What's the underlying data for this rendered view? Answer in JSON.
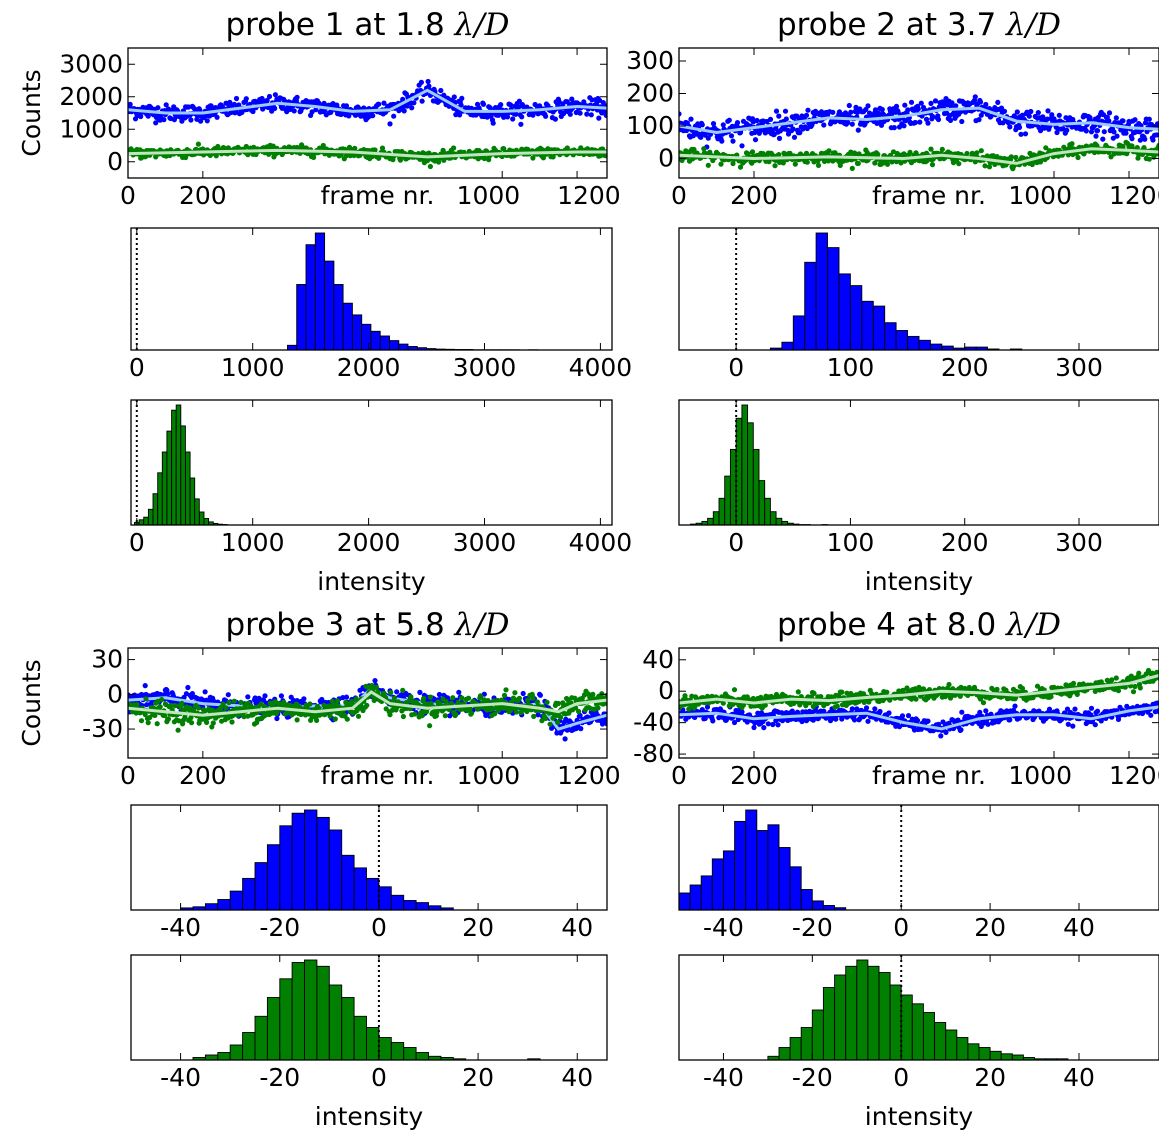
{
  "figure": {
    "xlabel_timeseries": "frame nr.",
    "xlabel_histogram": "intensity",
    "ylabel": "Counts"
  },
  "colors": {
    "blue": "#0000ff",
    "green": "#007f00",
    "light_blue": "#99ccff",
    "light_green": "#bfe6bf"
  },
  "chart_data": [
    {
      "type": "scatter",
      "panel": "probe 1 timeseries",
      "title": "probe 1 at 1.8 λ/D",
      "title_prefix": "probe 1 at 1.8",
      "title_math": "λ/D",
      "xlabel": "frame nr.",
      "ylabel": "Counts",
      "xlim": [
        0,
        1280
      ],
      "ylim": [
        -500,
        3500
      ],
      "xticks": [
        0,
        200,
        1000,
        1200
      ],
      "yticks": [
        0,
        1000,
        2000,
        3000
      ],
      "series": [
        {
          "color": "blue",
          "mean_x": [
            0,
            100,
            200,
            300,
            400,
            500,
            600,
            700,
            800,
            900,
            1000,
            1100,
            1200,
            1280
          ],
          "mean_y": [
            1600,
            1500,
            1500,
            1650,
            1800,
            1700,
            1550,
            1600,
            2200,
            1550,
            1550,
            1600,
            1700,
            1650
          ],
          "spread": 250
        },
        {
          "color": "green",
          "mean_x": [
            0,
            200,
            400,
            600,
            800,
            1000,
            1200,
            1280
          ],
          "mean_y": [
            250,
            300,
            350,
            300,
            150,
            250,
            300,
            300
          ],
          "spread": 150
        }
      ]
    },
    {
      "type": "bar",
      "panel": "probe 1 histogram blue",
      "color": "blue",
      "xlim": [
        -50,
        4100
      ],
      "xticks": [
        0,
        1000,
        2000,
        3000,
        4000
      ],
      "bin_start": 1300,
      "bin_width": 80,
      "values": [
        20,
        280,
        450,
        500,
        380,
        280,
        200,
        150,
        110,
        80,
        60,
        40,
        25,
        15,
        10,
        6,
        4,
        3,
        2,
        2,
        1,
        1,
        1,
        1,
        1,
        0,
        1
      ],
      "vline": 0
    },
    {
      "type": "bar",
      "panel": "probe 1 histogram green",
      "color": "green",
      "xlabel": "intensity",
      "xlim": [
        -50,
        4100
      ],
      "xticks": [
        0,
        1000,
        2000,
        3000,
        4000
      ],
      "bin_start": -20,
      "bin_width": 40,
      "values": [
        10,
        20,
        30,
        60,
        120,
        200,
        280,
        360,
        440,
        460,
        380,
        280,
        180,
        100,
        50,
        25,
        12,
        6,
        3,
        2
      ],
      "vline": 0
    },
    {
      "type": "scatter",
      "panel": "probe 2 timeseries",
      "title": "probe 2 at 3.7 λ/D",
      "title_prefix": "probe 2 at 3.7",
      "title_math": "λ/D",
      "xlabel": "frame nr.",
      "xlim": [
        0,
        1280
      ],
      "ylim": [
        -60,
        340
      ],
      "xticks": [
        0,
        200,
        1000,
        1200
      ],
      "yticks": [
        0,
        100,
        200,
        300
      ],
      "series": [
        {
          "color": "blue",
          "mean_x": [
            0,
            100,
            200,
            300,
            400,
            500,
            600,
            700,
            800,
            900,
            1000,
            1100,
            1200,
            1280
          ],
          "mean_y": [
            100,
            80,
            95,
            110,
            125,
            120,
            130,
            150,
            155,
            115,
            105,
            110,
            95,
            90
          ],
          "spread": 35
        },
        {
          "color": "green",
          "mean_x": [
            0,
            200,
            400,
            600,
            700,
            800,
            900,
            1000,
            1100,
            1200,
            1280
          ],
          "mean_y": [
            10,
            0,
            5,
            0,
            10,
            0,
            -15,
            15,
            30,
            25,
            20
          ],
          "spread": 18
        }
      ]
    },
    {
      "type": "bar",
      "panel": "probe 2 histogram blue",
      "color": "blue",
      "xlim": [
        -50,
        370
      ],
      "xticks": [
        0,
        100,
        200,
        300
      ],
      "bin_start": 30,
      "bin_width": 10,
      "values": [
        2,
        8,
        35,
        90,
        120,
        105,
        78,
        66,
        50,
        45,
        28,
        20,
        14,
        10,
        6,
        4,
        2,
        3,
        3,
        1,
        0,
        1,
        0,
        0,
        0,
        0,
        0,
        0
      ],
      "vline": 0
    },
    {
      "type": "bar",
      "panel": "probe 2 histogram green",
      "color": "green",
      "xlabel": "intensity",
      "xlim": [
        -50,
        370
      ],
      "xticks": [
        0,
        100,
        200,
        300
      ],
      "bin_start": -40,
      "bin_width": 5,
      "values": [
        2,
        4,
        8,
        15,
        30,
        60,
        110,
        170,
        240,
        270,
        230,
        170,
        100,
        60,
        30,
        15,
        8,
        4,
        2,
        1,
        1,
        0,
        0,
        1
      ],
      "vline": 0
    },
    {
      "type": "scatter",
      "panel": "probe 3 timeseries",
      "title": "probe 3 at 5.8 λ/D",
      "title_prefix": "probe 3 at 5.8",
      "title_math": "λ/D",
      "xlabel": "frame nr.",
      "ylabel": "Counts",
      "xlim": [
        0,
        1280
      ],
      "ylim": [
        -55,
        40
      ],
      "xticks": [
        0,
        200,
        1000,
        1200
      ],
      "yticks": [
        -30,
        0,
        30
      ],
      "series": [
        {
          "color": "blue",
          "mean_x": [
            0,
            100,
            200,
            300,
            400,
            500,
            600,
            650,
            700,
            800,
            900,
            1000,
            1100,
            1150,
            1200,
            1280
          ],
          "mean_y": [
            -5,
            -3,
            -8,
            -10,
            -12,
            -10,
            -10,
            5,
            -3,
            -8,
            -10,
            -12,
            -8,
            -30,
            -25,
            -18
          ],
          "spread": 8
        },
        {
          "color": "green",
          "mean_x": [
            0,
            100,
            200,
            300,
            400,
            500,
            600,
            650,
            700,
            800,
            900,
            1000,
            1100,
            1150,
            1200,
            1280
          ],
          "mean_y": [
            -12,
            -15,
            -18,
            -15,
            -12,
            -15,
            -12,
            2,
            -8,
            -12,
            -10,
            -8,
            -12,
            -15,
            -8,
            -5
          ],
          "spread": 9
        }
      ]
    },
    {
      "type": "bar",
      "panel": "probe 3 histogram blue",
      "color": "blue",
      "xlim": [
        -50,
        46
      ],
      "xticks": [
        -40,
        -20,
        0,
        20,
        40
      ],
      "bin_start": -40,
      "bin_width": 2.5,
      "values": [
        2,
        3,
        6,
        10,
        18,
        30,
        45,
        62,
        80,
        92,
        95,
        88,
        76,
        52,
        40,
        30,
        22,
        14,
        9,
        7,
        4,
        2
      ],
      "vline": 0
    },
    {
      "type": "bar",
      "panel": "probe 3 histogram green",
      "color": "green",
      "xlabel": "intensity",
      "xlim": [
        -50,
        46
      ],
      "xticks": [
        -40,
        -20,
        0,
        20,
        40
      ],
      "bin_start": -37.5,
      "bin_width": 2.5,
      "values": [
        2,
        4,
        6,
        12,
        22,
        35,
        50,
        65,
        78,
        80,
        75,
        60,
        50,
        35,
        26,
        18,
        14,
        10,
        6,
        3,
        2,
        1,
        0,
        0,
        0,
        0,
        0,
        1
      ],
      "vline": 0
    },
    {
      "type": "scatter",
      "panel": "probe 4 timeseries",
      "title": "probe 4 at 8.0 λ/D",
      "title_prefix": "probe 4 at 8.0",
      "title_math": "λ/D",
      "xlabel": "frame nr.",
      "xlim": [
        0,
        1280
      ],
      "ylim": [
        -85,
        55
      ],
      "xticks": [
        0,
        200,
        1000,
        1200
      ],
      "yticks": [
        -80,
        -40,
        0,
        40
      ],
      "series": [
        {
          "color": "blue",
          "mean_x": [
            0,
            100,
            200,
            300,
            400,
            500,
            600,
            700,
            800,
            900,
            1000,
            1100,
            1200,
            1280
          ],
          "mean_y": [
            -30,
            -28,
            -35,
            -32,
            -30,
            -28,
            -40,
            -48,
            -35,
            -30,
            -30,
            -35,
            -25,
            -20
          ],
          "spread": 8
        },
        {
          "color": "green",
          "mean_x": [
            0,
            100,
            200,
            300,
            400,
            500,
            600,
            700,
            800,
            900,
            1000,
            1100,
            1200,
            1280
          ],
          "mean_y": [
            -15,
            -10,
            -15,
            -10,
            -12,
            -8,
            -5,
            0,
            -2,
            -5,
            0,
            5,
            10,
            20
          ],
          "spread": 8
        }
      ]
    },
    {
      "type": "bar",
      "panel": "probe 4 histogram blue",
      "color": "blue",
      "xlim": [
        -50,
        58
      ],
      "xticks": [
        -40,
        -20,
        0,
        20,
        40
      ],
      "bin_start": -50,
      "bin_width": 2.5,
      "values": [
        15,
        22,
        30,
        45,
        52,
        78,
        88,
        70,
        75,
        55,
        38,
        18,
        8,
        4,
        2
      ],
      "vline": 0
    },
    {
      "type": "bar",
      "panel": "probe 4 histogram green",
      "color": "green",
      "xlabel": "intensity",
      "xlim": [
        -50,
        58
      ],
      "xticks": [
        -40,
        -20,
        0,
        20,
        40
      ],
      "bin_start": -30,
      "bin_width": 2.5,
      "values": [
        3,
        10,
        18,
        26,
        40,
        58,
        68,
        75,
        80,
        75,
        70,
        60,
        52,
        45,
        38,
        30,
        24,
        18,
        13,
        10,
        7,
        5,
        4,
        2,
        1,
        1,
        1
      ],
      "vline": 0
    }
  ]
}
